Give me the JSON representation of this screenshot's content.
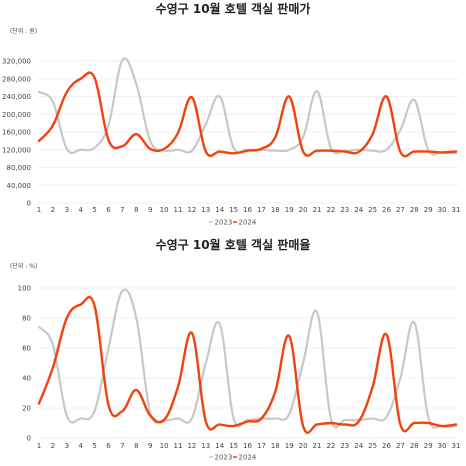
{
  "chart_data": [
    {
      "type": "line",
      "title": "수영구 10월 호텔 객실 판매가",
      "unit_label": "(단위 : 원)",
      "xlabel": "",
      "ylabel": "",
      "x": [
        1,
        2,
        3,
        4,
        5,
        6,
        7,
        8,
        9,
        10,
        11,
        12,
        13,
        14,
        15,
        16,
        17,
        18,
        19,
        20,
        21,
        22,
        23,
        24,
        25,
        26,
        27,
        28,
        29,
        30,
        31
      ],
      "x_tick_labels": [
        "1",
        "2",
        "3",
        "4",
        "5",
        "6",
        "7",
        "8",
        "9",
        "10",
        "11",
        "12",
        "13",
        "14",
        "15",
        "16",
        "17",
        "18",
        "19",
        "20",
        "21",
        "22",
        "23",
        "24",
        "25",
        "26",
        "27",
        "28",
        "29",
        "30",
        "31"
      ],
      "ylim": [
        0,
        320000
      ],
      "y_ticks": [
        0,
        40000,
        80000,
        120000,
        160000,
        200000,
        240000,
        280000,
        320000
      ],
      "y_tick_labels": [
        "0",
        "40,000",
        "80,000",
        "120,000",
        "160,000",
        "200,000",
        "240,000",
        "280,000",
        "320,000"
      ],
      "grid": true,
      "legend_position": "bottom",
      "series": [
        {
          "name": "2023",
          "color": "#c8c8c8",
          "values": [
            250000,
            228000,
            122000,
            120000,
            125000,
            175000,
            322000,
            268000,
            140000,
            118000,
            120000,
            118000,
            178000,
            240000,
            124000,
            120000,
            120000,
            118000,
            120000,
            148000,
            252000,
            124000,
            118000,
            120000,
            118000,
            120000,
            165000,
            232000,
            120000,
            114000,
            112000
          ]
        },
        {
          "name": "2024",
          "color": "#f0430e",
          "values": [
            140000,
            175000,
            250000,
            280000,
            282000,
            142000,
            128000,
            155000,
            122000,
            122000,
            158000,
            238000,
            116000,
            116000,
            112000,
            118000,
            122000,
            148000,
            240000,
            116000,
            118000,
            118000,
            116000,
            115000,
            155000,
            240000,
            115000,
            116000,
            116000,
            114000,
            116000
          ]
        }
      ]
    },
    {
      "type": "line",
      "title": "수영구 10월 호텔 객실 판매율",
      "unit_label": "(단위 : %)",
      "xlabel": "",
      "ylabel": "",
      "x": [
        1,
        2,
        3,
        4,
        5,
        6,
        7,
        8,
        9,
        10,
        11,
        12,
        13,
        14,
        15,
        16,
        17,
        18,
        19,
        20,
        21,
        22,
        23,
        24,
        25,
        26,
        27,
        28,
        29,
        30,
        31
      ],
      "x_tick_labels": [
        "1",
        "2",
        "3",
        "4",
        "5",
        "6",
        "7",
        "8",
        "9",
        "10",
        "11",
        "12",
        "13",
        "14",
        "15",
        "16",
        "17",
        "18",
        "19",
        "20",
        "21",
        "22",
        "23",
        "24",
        "25",
        "26",
        "27",
        "28",
        "29",
        "30",
        "31"
      ],
      "ylim": [
        0,
        100
      ],
      "y_ticks": [
        0,
        20,
        40,
        60,
        80,
        100
      ],
      "y_tick_labels": [
        "0",
        "20",
        "40",
        "60",
        "80",
        "100"
      ],
      "grid": true,
      "legend_position": "bottom",
      "series": [
        {
          "name": "2023",
          "color": "#c8c8c8",
          "values": [
            74,
            62,
            15,
            13,
            18,
            60,
            98,
            80,
            17,
            12,
            13,
            13,
            50,
            76,
            13,
            12,
            13,
            13,
            16,
            50,
            84,
            13,
            12,
            12,
            13,
            14,
            40,
            77,
            14,
            8,
            8
          ]
        },
        {
          "name": "2024",
          "color": "#f0430e",
          "values": [
            23,
            47,
            80,
            89,
            88,
            22,
            18,
            32,
            15,
            12,
            34,
            70,
            11,
            9,
            8,
            11,
            13,
            31,
            68,
            8,
            9,
            10,
            9,
            11,
            34,
            69,
            9,
            10,
            10,
            8,
            9
          ]
        }
      ]
    }
  ]
}
